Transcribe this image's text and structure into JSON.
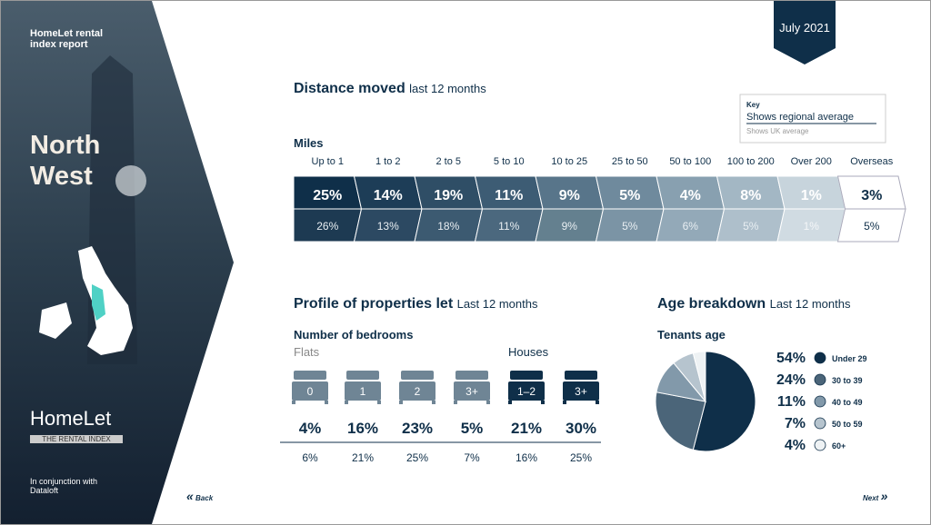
{
  "sidebar": {
    "brand": "HomeLet rental index report",
    "region": "North West",
    "logo": "HomeLet",
    "logo_tagline": "THE RENTAL INDEX",
    "footer": "In conjunction with Dataloft"
  },
  "badge": "July 2021",
  "distance": {
    "title": "Distance moved",
    "subtitle": "last 12 months",
    "key": {
      "title": "Key",
      "regional": "Shows regional average",
      "uk": "Shows UK average"
    },
    "unit": "Miles",
    "bands": [
      {
        "label": "Up to 1",
        "regional": "25%",
        "uk": "26%"
      },
      {
        "label": "1 to 2",
        "regional": "14%",
        "uk": "13%"
      },
      {
        "label": "2 to 5",
        "regional": "19%",
        "uk": "18%"
      },
      {
        "label": "5 to 10",
        "regional": "11%",
        "uk": "11%"
      },
      {
        "label": "10 to 25",
        "regional": "9%",
        "uk": "9%"
      },
      {
        "label": "25 to 50",
        "regional": "5%",
        "uk": "5%"
      },
      {
        "label": "50 to 100",
        "regional": "4%",
        "uk": "6%"
      },
      {
        "label": "100 to 200",
        "regional": "8%",
        "uk": "5%"
      },
      {
        "label": "Over 200",
        "regional": "1%",
        "uk": "1%"
      },
      {
        "label": "Overseas",
        "regional": "3%",
        "uk": "5%"
      }
    ]
  },
  "profile": {
    "title": "Profile of properties let",
    "subtitle": "Last 12 months",
    "heading": "Number of bedrooms",
    "flats": "Flats",
    "houses": "Houses",
    "items": [
      {
        "label": "0",
        "regional": "4%",
        "uk": "6%"
      },
      {
        "label": "1",
        "regional": "16%",
        "uk": "21%"
      },
      {
        "label": "2",
        "regional": "23%",
        "uk": "25%"
      },
      {
        "label": "3+",
        "regional": "5%",
        "uk": "7%"
      },
      {
        "label": "1–2",
        "regional": "21%",
        "uk": "16%"
      },
      {
        "label": "3+",
        "regional": "30%",
        "uk": "25%"
      }
    ]
  },
  "age": {
    "title": "Age breakdown",
    "subtitle": "Last 12 months",
    "heading": "Tenants age",
    "segments": [
      {
        "value": 54,
        "value_label": "54%",
        "label": "Under 29",
        "color": "#0f2f49"
      },
      {
        "value": 24,
        "value_label": "24%",
        "label": "30 to 39",
        "color": "#4b6579"
      },
      {
        "value": 11,
        "value_label": "11%",
        "label": "40 to 49",
        "color": "#8299aa"
      },
      {
        "value": 7,
        "value_label": "7%",
        "label": "50 to 59",
        "color": "#b6c4ce"
      },
      {
        "value": 4,
        "value_label": "4%",
        "label": "60+",
        "color": "#eef2f4"
      }
    ]
  },
  "nav": {
    "back": "Back",
    "next": "Next"
  }
}
